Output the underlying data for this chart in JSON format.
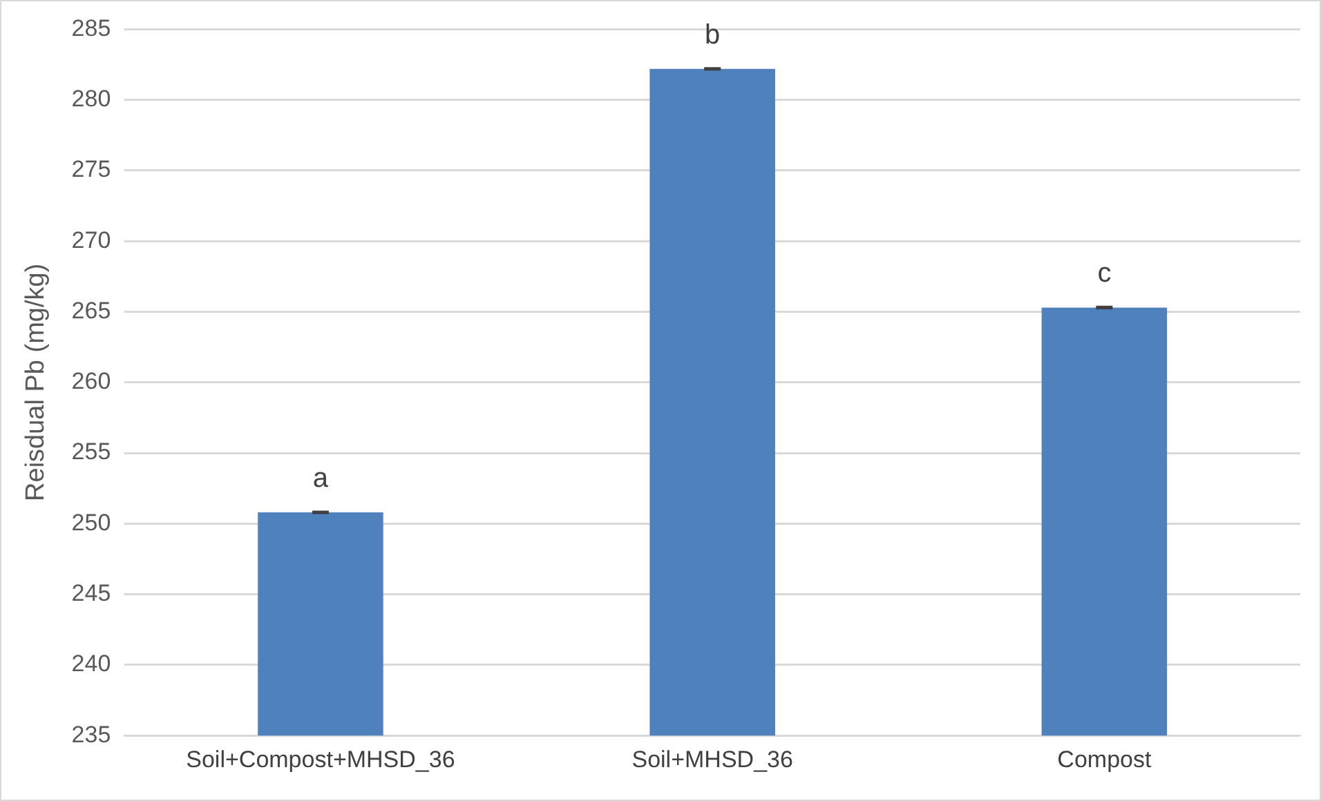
{
  "chart_data": {
    "type": "bar",
    "ylabel": "Reisdual Pb (mg/kg)",
    "categories": [
      "Soil+Compost+MHSD_36",
      "Soil+MHSD_36",
      "Compost"
    ],
    "values": [
      250.8,
      282.2,
      265.3
    ],
    "errors": [
      0.05,
      0.05,
      0.05
    ],
    "color": "#4f81bd",
    "ylim": [
      235,
      285
    ],
    "yticks": [
      235,
      240,
      245,
      250,
      255,
      260,
      265,
      270,
      275,
      280,
      285
    ],
    "grid": "y",
    "annotations": [
      {
        "text": "a",
        "x": "Soil+Compost+MHSD_36",
        "y": 250.8
      },
      {
        "text": "b",
        "x": "Soil+MHSD_36",
        "y": 282.2
      },
      {
        "text": "c",
        "x": "Compost",
        "y": 265.3
      }
    ]
  }
}
